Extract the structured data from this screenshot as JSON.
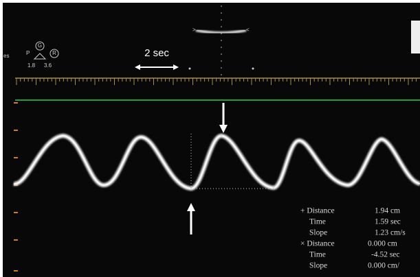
{
  "scale": {
    "label": "2 sec"
  },
  "probe": {
    "edge": "es",
    "p": "P",
    "g": "G",
    "r": "R",
    "left_value": "1.8",
    "right_value": "3.6"
  },
  "measurements": [
    {
      "label": "+ Distance",
      "value": "1.94 cm"
    },
    {
      "label": "Time",
      "value": "1.59 sec"
    },
    {
      "label": "Slope",
      "value": "1.23 cm/s"
    },
    {
      "label": "× Distance",
      "value": "0.000 cm"
    },
    {
      "label": "Time",
      "value": "-4.52 sec"
    },
    {
      "label": "Slope",
      "value": "0.000 cm/"
    }
  ]
}
